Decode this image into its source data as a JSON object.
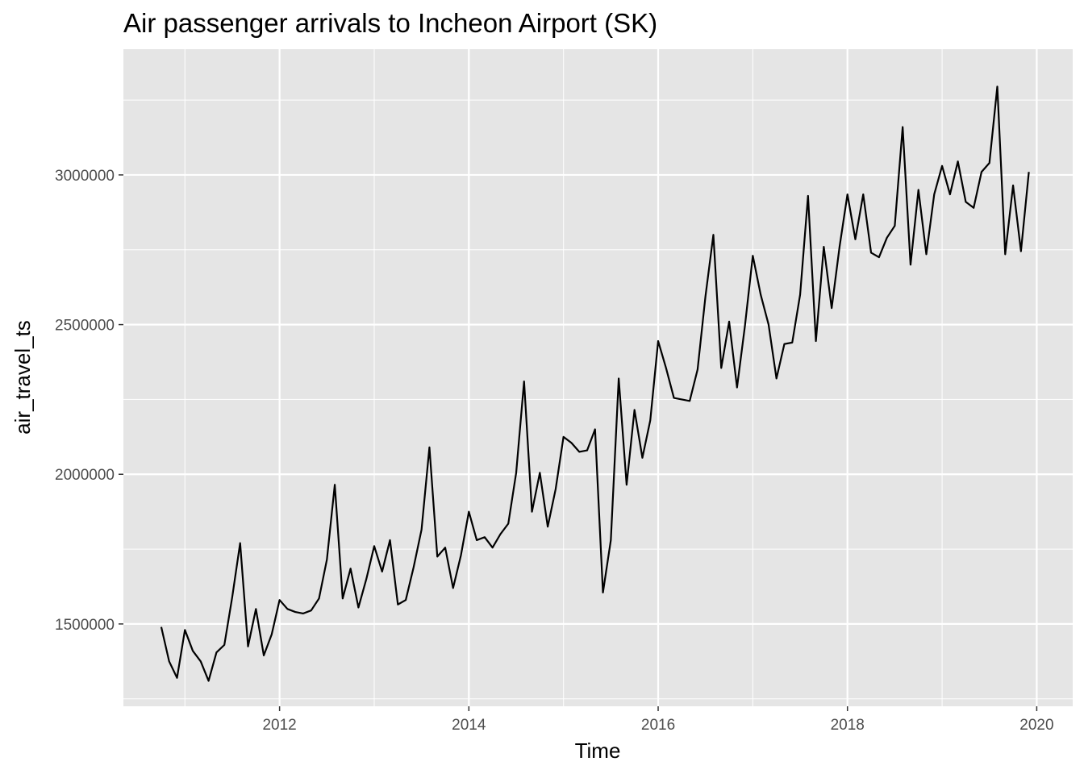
{
  "chart_data": {
    "type": "line",
    "title": "Air passenger arrivals to Incheon Airport (SK)",
    "xlabel": "Time",
    "ylabel": "air_travel_ts",
    "x_ticks": [
      2012,
      2014,
      2016,
      2018,
      2020
    ],
    "x_tick_labels": [
      "2012",
      "2014",
      "2016",
      "2018",
      "2020"
    ],
    "y_ticks": [
      1500000,
      2000000,
      2500000,
      3000000
    ],
    "y_tick_labels": [
      "1500000",
      "2000000",
      "2500000",
      "3000000"
    ],
    "xlim": [
      2010.35,
      2020.38
    ],
    "ylim": [
      1225000,
      3420000
    ],
    "grid": true,
    "background": "#e5e5e5",
    "line_color": "#000000",
    "series": [
      {
        "start": 2010.75,
        "step": 0.0833333,
        "values": [
          1490000,
          1375000,
          1320000,
          1480000,
          1410000,
          1375000,
          1310000,
          1405000,
          1430000,
          1590000,
          1770000,
          1425000,
          1550000,
          1395000,
          1465000,
          1580000,
          1550000,
          1540000,
          1535000,
          1545000,
          1585000,
          1715000,
          1965000,
          1585000,
          1685000,
          1555000,
          1650000,
          1760000,
          1675000,
          1780000,
          1565000,
          1580000,
          1690000,
          1815000,
          2090000,
          1725000,
          1755000,
          1620000,
          1730000,
          1875000,
          1780000,
          1790000,
          1755000,
          1800000,
          1835000,
          2005000,
          2310000,
          1875000,
          2005000,
          1825000,
          1950000,
          2125000,
          2105000,
          2075000,
          2080000,
          2150000,
          1605000,
          1780000,
          2320000,
          1965000,
          2215000,
          2055000,
          2180000,
          2445000,
          2355000,
          2255000,
          2250000,
          2245000,
          2350000,
          2595000,
          2800000,
          2355000,
          2510000,
          2290000,
          2495000,
          2730000,
          2600000,
          2500000,
          2320000,
          2435000,
          2440000,
          2600000,
          2930000,
          2445000,
          2760000,
          2555000,
          2760000,
          2935000,
          2785000,
          2935000,
          2740000,
          2725000,
          2790000,
          2830000,
          3160000,
          2700000,
          2950000,
          2735000,
          2935000,
          3030000,
          2935000,
          3045000,
          2910000,
          2890000,
          3010000,
          3040000,
          3295000,
          2735000,
          2965000,
          2745000,
          3010000
        ]
      }
    ]
  }
}
